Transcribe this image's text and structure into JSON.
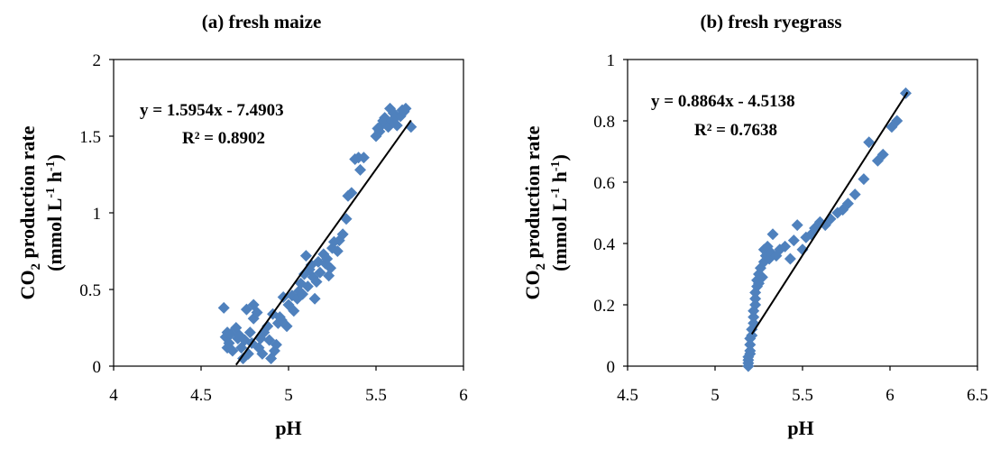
{
  "chart_data": [
    {
      "type": "scatter",
      "title": "(a)  fresh maize",
      "xlabel": "pH",
      "ylabel_line1_main": "CO",
      "ylabel_line1_sub": "2",
      "ylabel_line1_rest": " production rate",
      "ylabel_line2_pre": "(mmol L",
      "ylabel_line2_sup1": "-1",
      "ylabel_line2_mid": " h",
      "ylabel_line2_sup2": "-1",
      "ylabel_line2_post": ")",
      "xlim": [
        4,
        6
      ],
      "ylim": [
        0,
        2
      ],
      "xticks": [
        "4",
        "4.5",
        "5",
        "5.5",
        "6"
      ],
      "yticks": [
        "0",
        "0.5",
        "1",
        "1.5",
        "2"
      ],
      "equation": "y = 1.5954x - 7.4903",
      "r_squared": "R² = 0.8902",
      "trendline": {
        "slope": 1.5954,
        "intercept": -7.4903,
        "x_range": [
          4.7,
          5.7
        ]
      },
      "marker_color": "#4f81bd",
      "line_color": "#000000",
      "points": [
        [
          4.63,
          0.38
        ],
        [
          4.64,
          0.19
        ],
        [
          4.65,
          0.22
        ],
        [
          4.65,
          0.12
        ],
        [
          4.66,
          0.15
        ],
        [
          4.67,
          0.21
        ],
        [
          4.68,
          0.1
        ],
        [
          4.7,
          0.25
        ],
        [
          4.71,
          0.18
        ],
        [
          4.72,
          0.2
        ],
        [
          4.73,
          0.12
        ],
        [
          4.74,
          0.05
        ],
        [
          4.75,
          0.17
        ],
        [
          4.76,
          0.37
        ],
        [
          4.77,
          0.08
        ],
        [
          4.78,
          0.22
        ],
        [
          4.79,
          0.15
        ],
        [
          4.8,
          0.4
        ],
        [
          4.8,
          0.31
        ],
        [
          4.82,
          0.35
        ],
        [
          4.83,
          0.12
        ],
        [
          4.84,
          0.18
        ],
        [
          4.85,
          0.08
        ],
        [
          4.86,
          0.22
        ],
        [
          4.88,
          0.26
        ],
        [
          4.89,
          0.17
        ],
        [
          4.9,
          0.05
        ],
        [
          4.91,
          0.34
        ],
        [
          4.92,
          0.1
        ],
        [
          4.93,
          0.14
        ],
        [
          4.94,
          0.28
        ],
        [
          4.95,
          0.32
        ],
        [
          4.96,
          0.3
        ],
        [
          4.97,
          0.45
        ],
        [
          4.99,
          0.26
        ],
        [
          5.0,
          0.4
        ],
        [
          5.02,
          0.46
        ],
        [
          5.03,
          0.36
        ],
        [
          5.05,
          0.44
        ],
        [
          5.06,
          0.49
        ],
        [
          5.07,
          0.54
        ],
        [
          5.08,
          0.47
        ],
        [
          5.09,
          0.6
        ],
        [
          5.1,
          0.72
        ],
        [
          5.11,
          0.52
        ],
        [
          5.12,
          0.63
        ],
        [
          5.13,
          0.66
        ],
        [
          5.14,
          0.58
        ],
        [
          5.15,
          0.44
        ],
        [
          5.16,
          0.55
        ],
        [
          5.17,
          0.68
        ],
        [
          5.18,
          0.61
        ],
        [
          5.2,
          0.73
        ],
        [
          5.21,
          0.67
        ],
        [
          5.22,
          0.7
        ],
        [
          5.23,
          0.59
        ],
        [
          5.24,
          0.64
        ],
        [
          5.25,
          0.77
        ],
        [
          5.26,
          0.81
        ],
        [
          5.28,
          0.75
        ],
        [
          5.29,
          0.82
        ],
        [
          5.31,
          0.86
        ],
        [
          5.33,
          0.96
        ],
        [
          5.34,
          1.11
        ],
        [
          5.36,
          1.13
        ],
        [
          5.38,
          1.35
        ],
        [
          5.4,
          1.36
        ],
        [
          5.41,
          1.28
        ],
        [
          5.43,
          1.36
        ],
        [
          5.5,
          1.5
        ],
        [
          5.51,
          1.55
        ],
        [
          5.52,
          1.53
        ],
        [
          5.53,
          1.57
        ],
        [
          5.54,
          1.6
        ],
        [
          5.55,
          1.62
        ],
        [
          5.56,
          1.58
        ],
        [
          5.57,
          1.56
        ],
        [
          5.58,
          1.68
        ],
        [
          5.59,
          1.6
        ],
        [
          5.6,
          1.65
        ],
        [
          5.61,
          1.62
        ],
        [
          5.62,
          1.57
        ],
        [
          5.64,
          1.63
        ],
        [
          5.65,
          1.67
        ],
        [
          5.66,
          1.66
        ],
        [
          5.67,
          1.68
        ],
        [
          5.7,
          1.56
        ]
      ]
    },
    {
      "type": "scatter",
      "title": "(b) fresh ryegrass",
      "xlabel": "pH",
      "ylabel_line1_main": "CO",
      "ylabel_line1_sub": "2",
      "ylabel_line1_rest": " production rate",
      "ylabel_line2_pre": "(mmol L",
      "ylabel_line2_sup1": "-1",
      "ylabel_line2_mid": " h",
      "ylabel_line2_sup2": "-1",
      "ylabel_line2_post": ")",
      "xlim": [
        4.5,
        6.5
      ],
      "ylim": [
        0,
        1
      ],
      "xticks": [
        "4.5",
        "5",
        "5.5",
        "6",
        "6.5"
      ],
      "yticks": [
        "0",
        "0.2",
        "0.4",
        "0.6",
        "0.8",
        "1"
      ],
      "equation": "y = 0.8864x - 4.5138",
      "r_squared": "R² = 0.7638",
      "trendline": {
        "slope": 0.8864,
        "intercept": -4.5138,
        "x_range": [
          5.21,
          6.1
        ]
      },
      "marker_color": "#4f81bd",
      "line_color": "#000000",
      "points": [
        [
          5.19,
          0.0
        ],
        [
          5.19,
          0.01
        ],
        [
          5.19,
          0.02
        ],
        [
          5.19,
          0.03
        ],
        [
          5.2,
          0.04
        ],
        [
          5.2,
          0.05
        ],
        [
          5.2,
          0.07
        ],
        [
          5.2,
          0.09
        ],
        [
          5.21,
          0.1
        ],
        [
          5.21,
          0.12
        ],
        [
          5.22,
          0.14
        ],
        [
          5.22,
          0.16
        ],
        [
          5.22,
          0.18
        ],
        [
          5.23,
          0.2
        ],
        [
          5.23,
          0.22
        ],
        [
          5.23,
          0.24
        ],
        [
          5.24,
          0.26
        ],
        [
          5.24,
          0.28
        ],
        [
          5.25,
          0.27
        ],
        [
          5.25,
          0.3
        ],
        [
          5.26,
          0.32
        ],
        [
          5.27,
          0.29
        ],
        [
          5.28,
          0.34
        ],
        [
          5.28,
          0.38
        ],
        [
          5.29,
          0.36
        ],
        [
          5.3,
          0.39
        ],
        [
          5.31,
          0.35
        ],
        [
          5.32,
          0.37
        ],
        [
          5.33,
          0.43
        ],
        [
          5.35,
          0.36
        ],
        [
          5.37,
          0.38
        ],
        [
          5.4,
          0.39
        ],
        [
          5.43,
          0.35
        ],
        [
          5.45,
          0.41
        ],
        [
          5.47,
          0.46
        ],
        [
          5.5,
          0.38
        ],
        [
          5.52,
          0.42
        ],
        [
          5.55,
          0.43
        ],
        [
          5.57,
          0.45
        ],
        [
          5.6,
          0.47
        ],
        [
          5.63,
          0.46
        ],
        [
          5.66,
          0.48
        ],
        [
          5.7,
          0.5
        ],
        [
          5.73,
          0.51
        ],
        [
          5.76,
          0.53
        ],
        [
          5.8,
          0.56
        ],
        [
          5.85,
          0.61
        ],
        [
          5.88,
          0.73
        ],
        [
          5.93,
          0.67
        ],
        [
          5.96,
          0.69
        ],
        [
          6.01,
          0.78
        ],
        [
          6.04,
          0.8
        ],
        [
          6.09,
          0.89
        ]
      ]
    }
  ]
}
